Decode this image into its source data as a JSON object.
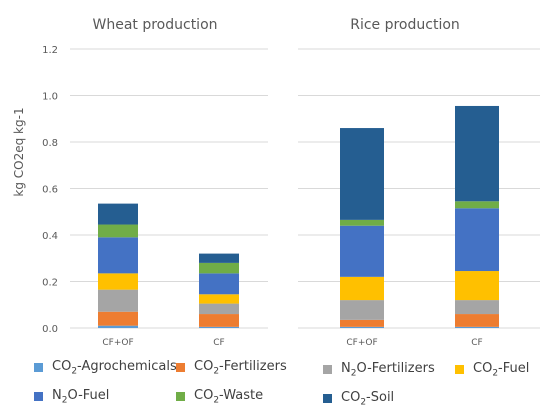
{
  "chart_data": {
    "type": "bar",
    "stacked": true,
    "ylabel": "kg CO2eq kg-1",
    "ylim": [
      0,
      1.2
    ],
    "yticks": [
      "0.0",
      "0.2",
      "0.4",
      "0.6",
      "0.8",
      "1.0",
      "1.2"
    ],
    "grid": true,
    "legend_position": "bottom",
    "series": [
      {
        "name": "CO2-Agrochemicals",
        "color": "#5B9BD5"
      },
      {
        "name": "CO2-Fertilizers",
        "color": "#ED7D31"
      },
      {
        "name": "N2O-Fertilizers",
        "color": "#A5A5A5"
      },
      {
        "name": "CO2-Fuel",
        "color": "#FFC000"
      },
      {
        "name": "N2O-Fuel",
        "color": "#4472C4"
      },
      {
        "name": "CO2-Waste",
        "color": "#70AD47"
      },
      {
        "name": "CO2-Soil",
        "color": "#255E91"
      }
    ],
    "panels": [
      {
        "title": "Wheat production",
        "categories": [
          "CF+OF",
          "CF"
        ],
        "values": [
          [
            0.01,
            0.06,
            0.095,
            0.07,
            0.155,
            0.055,
            0.09
          ],
          [
            0.005,
            0.055,
            0.045,
            0.04,
            0.09,
            0.045,
            0.04
          ]
        ]
      },
      {
        "title": "Rice production",
        "categories": [
          "CF+OF",
          "CF"
        ],
        "values": [
          [
            0.005,
            0.03,
            0.085,
            0.1,
            0.22,
            0.025,
            0.395
          ],
          [
            0.005,
            0.055,
            0.06,
            0.125,
            0.27,
            0.03,
            0.41
          ]
        ]
      }
    ]
  }
}
